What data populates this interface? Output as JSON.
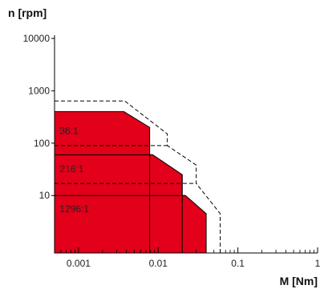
{
  "chart_data": {
    "type": "area",
    "ylabel": "n [rpm]",
    "xlabel": "M [Nm]",
    "x_scale": "log",
    "y_scale": "log",
    "xlim": [
      0.0005,
      1
    ],
    "ylim": [
      0.8,
      10000
    ],
    "x_ticks": [
      {
        "value": 0.001,
        "label": "0.001"
      },
      {
        "value": 0.01,
        "label": "0.01"
      },
      {
        "value": 0.1,
        "label": "0.1"
      },
      {
        "value": 1,
        "label": "1"
      }
    ],
    "y_ticks": [
      {
        "value": 10,
        "label": "10"
      },
      {
        "value": 100,
        "label": "100"
      },
      {
        "value": 1000,
        "label": "1000"
      },
      {
        "value": 10000,
        "label": "10000"
      }
    ],
    "fill_color": "#e2001a",
    "region": [
      [
        0.0005,
        400
      ],
      [
        0.0037,
        400
      ],
      [
        0.0078,
        200
      ],
      [
        0.0078,
        60
      ],
      [
        0.0085,
        60
      ],
      [
        0.02,
        25
      ],
      [
        0.02,
        10
      ],
      [
        0.022,
        10
      ],
      [
        0.04,
        4.5
      ],
      [
        0.04,
        0.8
      ],
      [
        0.0005,
        0.8
      ]
    ],
    "dashed_envelope": [
      [
        0.0005,
        640
      ],
      [
        0.0038,
        640
      ],
      [
        0.013,
        150
      ],
      [
        0.013,
        90
      ],
      [
        0.03,
        38
      ],
      [
        0.03,
        17
      ],
      [
        0.06,
        4.5
      ],
      [
        0.06,
        0.8
      ]
    ],
    "dashed_thresholds": [
      {
        "y": 90,
        "x_end": 0.013
      },
      {
        "y": 17,
        "x_end": 0.03
      }
    ],
    "ratio_separators": [
      {
        "y": 60,
        "x_end": 0.0085
      },
      {
        "y": 10,
        "x_end": 0.022
      }
    ],
    "vertical_dividers": [
      0.0078,
      0.02
    ],
    "ratio_labels": [
      {
        "text": "36:1",
        "x": 0.00058,
        "y": 150
      },
      {
        "text": "216:1",
        "x": 0.00058,
        "y": 28
      },
      {
        "text": "1296:1",
        "x": 0.00058,
        "y": 4.8
      }
    ],
    "grid": false
  }
}
